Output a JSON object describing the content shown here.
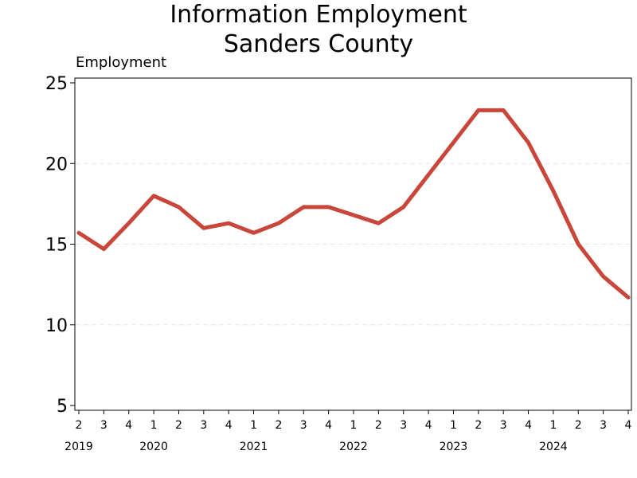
{
  "chart_data": {
    "type": "line",
    "title": "Information Employment",
    "subtitle": "Sanders County",
    "ylabel": "Employment",
    "xlabel": "",
    "ylim": [
      5,
      25
    ],
    "yticks": [
      5,
      10,
      15,
      20,
      25
    ],
    "grid": "horizontal dashed",
    "legend": "none",
    "color": "#c9463a",
    "quarters": [
      "2",
      "3",
      "4",
      "1",
      "2",
      "3",
      "4",
      "1",
      "2",
      "3",
      "4",
      "1",
      "2",
      "3",
      "4",
      "1",
      "2",
      "3",
      "4",
      "1",
      "2",
      "3",
      "4"
    ],
    "years": [
      {
        "label": "2019",
        "at_index": 0
      },
      {
        "label": "2020",
        "at_index": 3
      },
      {
        "label": "2021",
        "at_index": 7
      },
      {
        "label": "2022",
        "at_index": 11
      },
      {
        "label": "2023",
        "at_index": 15
      },
      {
        "label": "2024",
        "at_index": 19
      }
    ],
    "series": [
      {
        "values": [
          15.7,
          14.7,
          16.3,
          18.0,
          17.3,
          16.0,
          16.3,
          15.7,
          16.3,
          17.3,
          17.3,
          16.8,
          16.3,
          17.3,
          19.3,
          21.3,
          23.3,
          23.3,
          21.3,
          18.3,
          15.0,
          13.0,
          11.7
        ]
      }
    ]
  }
}
